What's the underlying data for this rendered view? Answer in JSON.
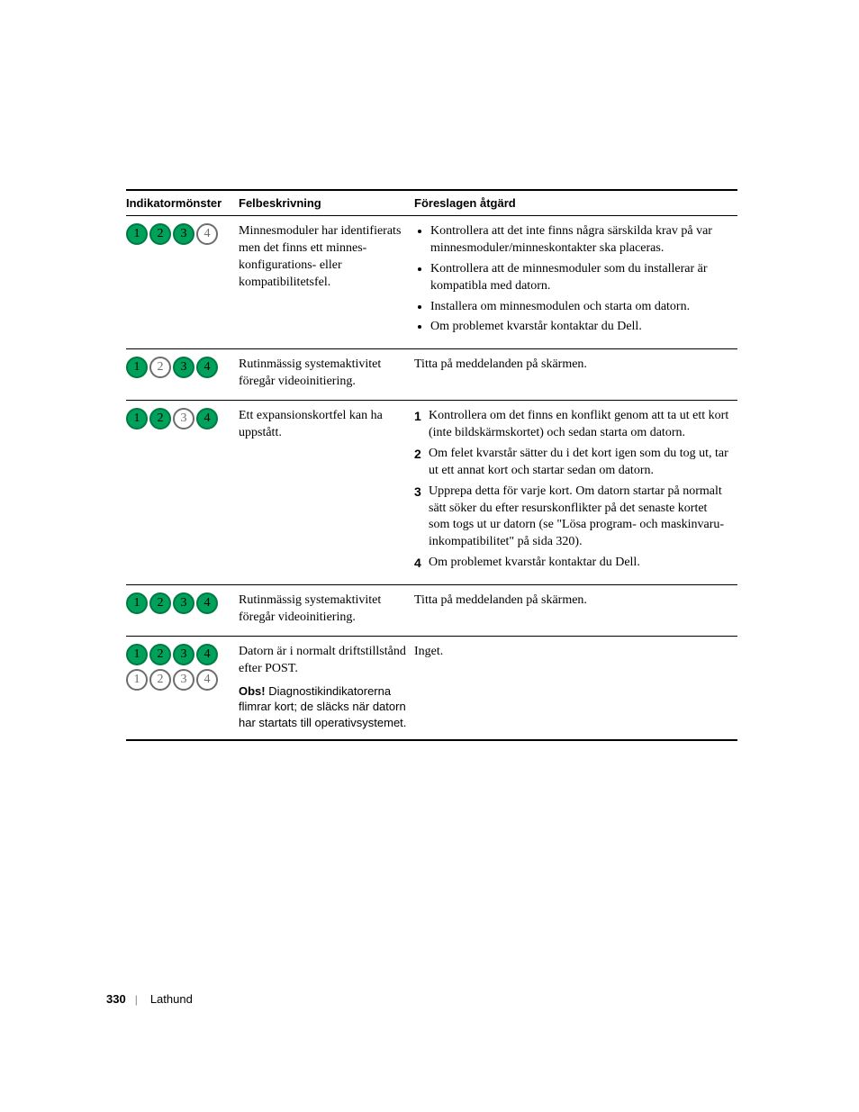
{
  "colors": {
    "green_fill": "#00a15a",
    "green_stroke": "#007a44",
    "green_text": "#000000",
    "off_fill": "#ffffff",
    "off_stroke": "#6d6d6d",
    "off_text": "#6d6d6d"
  },
  "headers": {
    "pattern": "Indikatormönster",
    "desc": "Felbeskrivning",
    "action": "Föreslagen åtgärd"
  },
  "rows": [
    {
      "lights": [
        [
          true,
          true,
          true,
          false
        ]
      ],
      "desc": [
        "Minnesmoduler har identifierats men det finns ett minnes-konfigurations- eller kompatibilitetsfel."
      ],
      "action_type": "bullets",
      "action": [
        "Kontrollera att det inte finns några särskilda krav på var minnesmoduler/minneskontakter ska placeras.",
        "Kontrollera att de minnesmoduler som du installerar är kompatibla med datorn.",
        "Installera om minnesmodulen och starta om datorn.",
        "Om problemet kvarstår kontaktar du Dell."
      ]
    },
    {
      "lights": [
        [
          true,
          false,
          true,
          true
        ]
      ],
      "desc": [
        "Rutinmässig systemaktivitet föregår videoinitiering."
      ],
      "action_type": "text",
      "action": [
        "Titta på meddelanden på skärmen."
      ]
    },
    {
      "lights": [
        [
          true,
          true,
          false,
          true
        ]
      ],
      "desc": [
        "Ett expansionskortfel kan ha uppstått."
      ],
      "action_type": "numbers",
      "action": [
        "Kontrollera om det finns en konflikt genom att ta ut ett kort (inte bildskärmskortet) och sedan starta om datorn.",
        "Om felet kvarstår sätter du i det kort igen som du tog ut, tar ut ett annat kort och startar sedan om datorn.",
        "Upprepa detta för varje kort. Om datorn startar på normalt sätt söker du efter resurskonflikter på det senaste kortet som togs ut ur datorn (se \"Lösa program- och maskinvaru-inkompatibilitet\" på sida 320).",
        "Om problemet kvarstår kontaktar du Dell."
      ]
    },
    {
      "lights": [
        [
          true,
          true,
          true,
          true
        ]
      ],
      "desc": [
        "Rutinmässig systemaktivitet föregår videoinitiering."
      ],
      "action_type": "text",
      "action": [
        "Titta på meddelanden på skärmen."
      ]
    },
    {
      "lights": [
        [
          true,
          true,
          true,
          true
        ],
        [
          false,
          false,
          false,
          false
        ]
      ],
      "desc": [
        "Datorn är i normalt driftstillstånd efter POST."
      ],
      "note_label": "Obs!",
      "note": "Diagnostikindikatorerna flimrar kort; de släcks när datorn har startats till operativsystemet.",
      "action_type": "text",
      "action": [
        "Inget."
      ]
    }
  ],
  "footer": {
    "page": "330",
    "title": "Lathund"
  }
}
